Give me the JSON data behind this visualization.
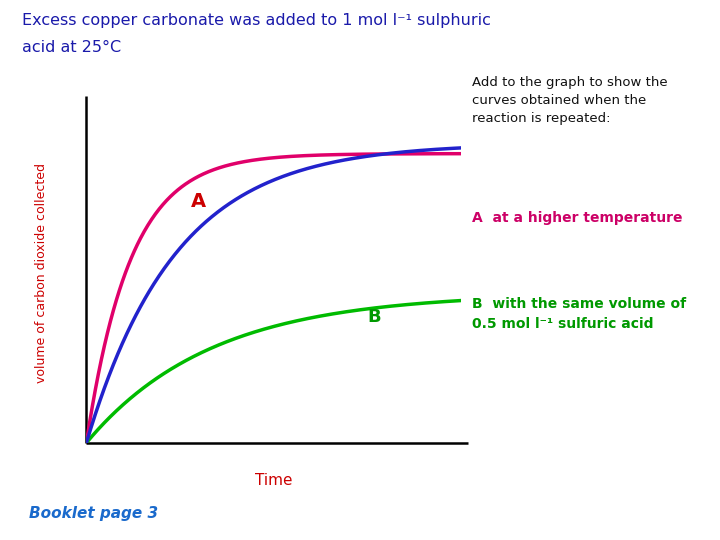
{
  "title_line1": "Excess copper carbonate was added to 1 mol l⁻¹ sulphuric",
  "title_line2": "acid at 25°C",
  "title_color": "#1a1aaa",
  "ylabel": "volume of carbon dioxide collected",
  "ylabel_color": "#cc0000",
  "xlabel": "Time",
  "xlabel_color": "#cc0000",
  "curve_blue_color": "#2222cc",
  "curve_pink_color": "#e0006a",
  "curve_green_color": "#00bb00",
  "label_A_color": "#cc0000",
  "label_B_color": "#009900",
  "annotation_text": "Add to the graph to show the\ncurves obtained when the\nreaction is repeated:",
  "annotation_color": "#111111",
  "legend_A_text": "A  at a higher temperature",
  "legend_A_color": "#cc0066",
  "legend_B_text": "B  with the same volume of\n0.5 mol l⁻¹ sulfuric acid",
  "legend_B_color": "#009900",
  "booklet_text": "Booklet page 3",
  "booklet_color": "#1a6acc",
  "background_color": "#ffffff"
}
